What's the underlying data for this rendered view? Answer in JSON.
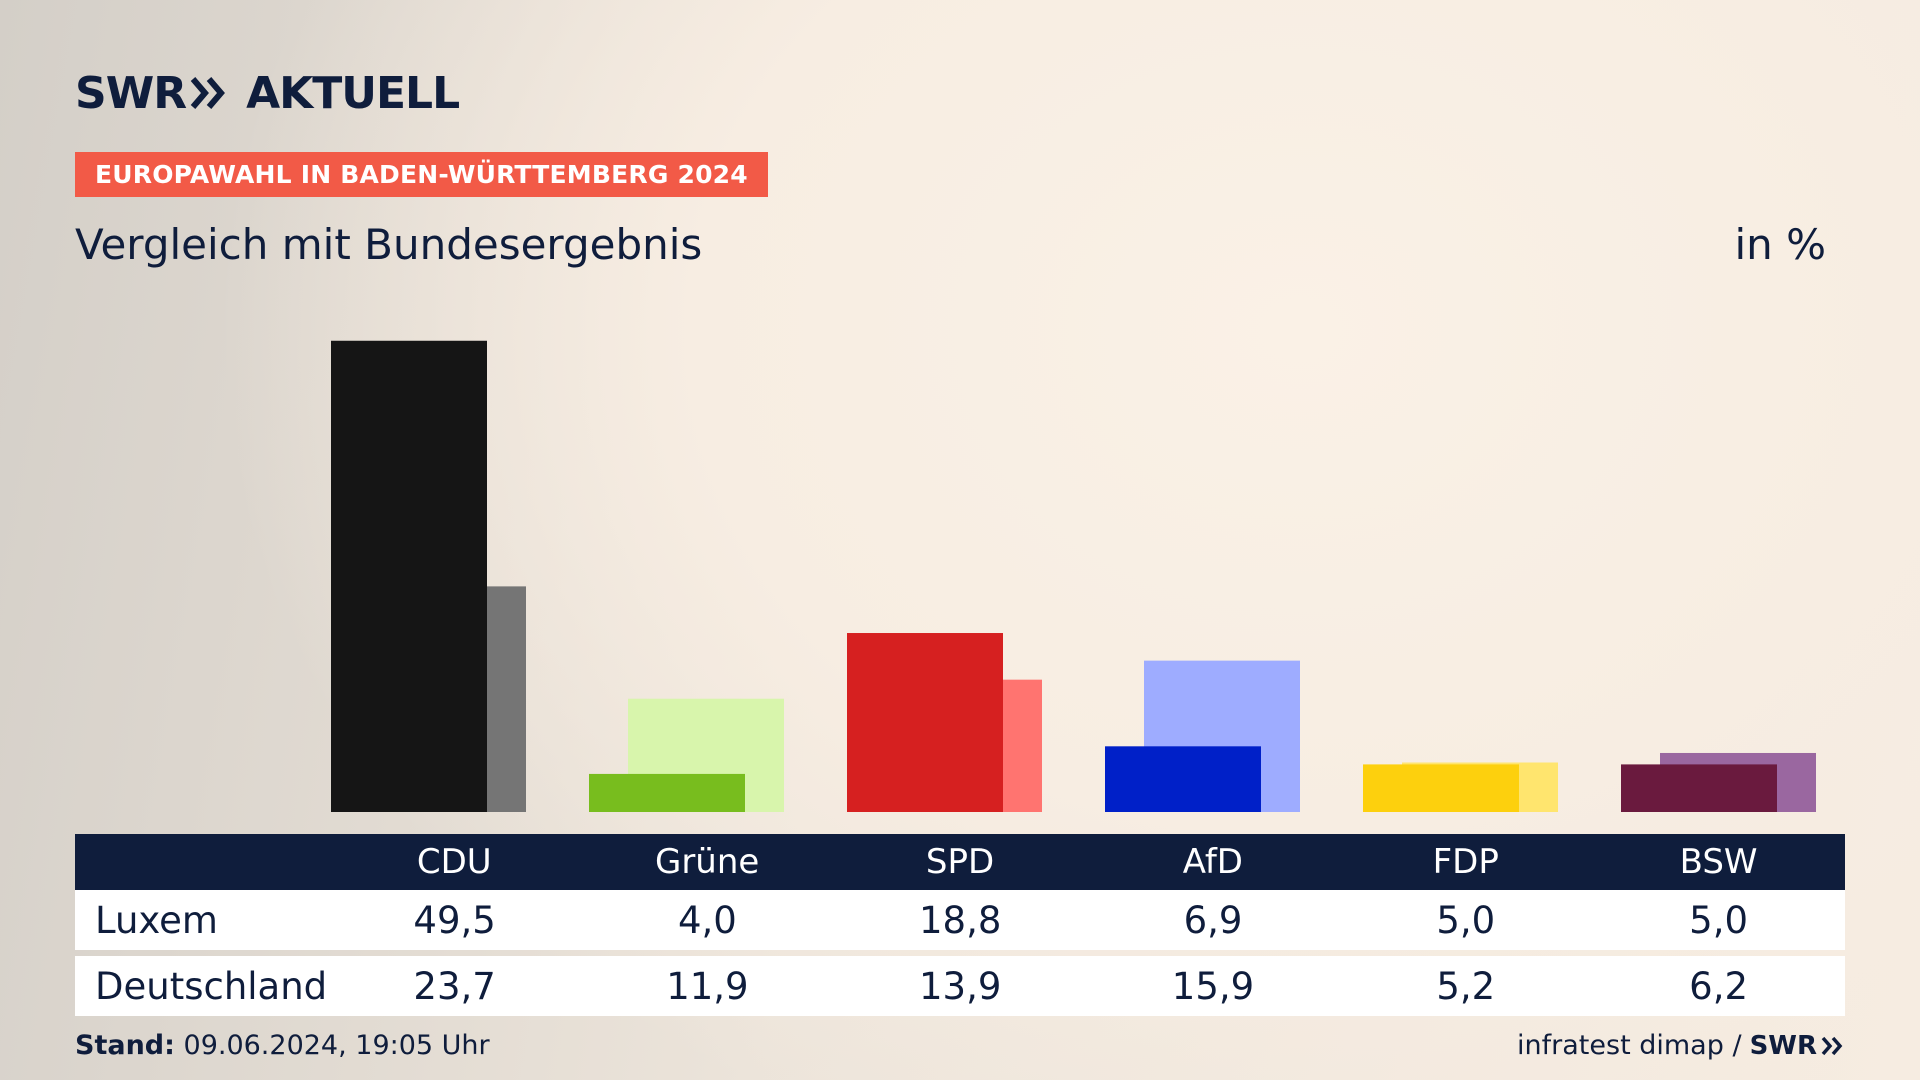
{
  "header": {
    "logo": {
      "brand": "SWR",
      "word": "AKTUELL",
      "chevrons_icon": "double-chevron-right-icon"
    },
    "badge": "EUROPAWAHL IN BADEN-WÜRTTEMBERG 2024",
    "subtitle": "Vergleich mit Bundesergebnis",
    "unit": "in %"
  },
  "colors": {
    "navy": "#0f1d3c",
    "badge": "#f25a47",
    "CDU": [
      "#151515",
      "#757575"
    ],
    "Grüne": [
      "#78bd1e",
      "#d8f5ac"
    ],
    "SPD": [
      "#d62020",
      "#ff7470"
    ],
    "AfD": [
      "#0020c8",
      "#9eacff"
    ],
    "FDP": [
      "#fdd00d",
      "#ffe56e"
    ],
    "BSW": [
      "#6a1a3e",
      "#9a67a0"
    ]
  },
  "chart_data": {
    "type": "bar",
    "categories": [
      "CDU",
      "Grüne",
      "SPD",
      "AfD",
      "FDP",
      "BSW"
    ],
    "series": [
      {
        "name": "Luxem",
        "values": [
          49.5,
          4.0,
          18.8,
          6.9,
          5.0,
          5.0
        ]
      },
      {
        "name": "Deutschland",
        "values": [
          23.7,
          11.9,
          13.9,
          15.9,
          5.2,
          6.2
        ]
      }
    ],
    "ylim": [
      0,
      50
    ],
    "grid": false
  },
  "table": {
    "headers": [
      "CDU",
      "Grüne",
      "SPD",
      "AfD",
      "FDP",
      "BSW"
    ],
    "rows": [
      {
        "label": "Luxem",
        "values": [
          "49,5",
          "4,0",
          "18,8",
          "6,9",
          "5,0",
          "5,0"
        ]
      },
      {
        "label": "Deutschland",
        "values": [
          "23,7",
          "11,9",
          "13,9",
          "15,9",
          "5,2",
          "6,2"
        ]
      }
    ]
  },
  "footer": {
    "stand_label": "Stand:",
    "stand_value": "09.06.2024, 19:05 Uhr",
    "source": "infratest dimap /",
    "source_brand": "SWR"
  }
}
